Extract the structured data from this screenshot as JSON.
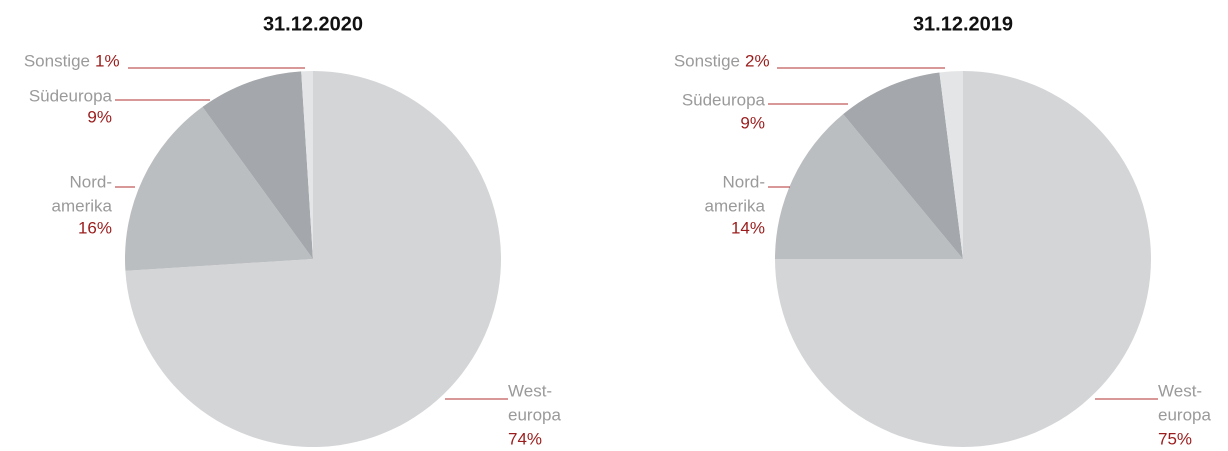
{
  "chart_data": [
    {
      "type": "pie",
      "title": "31.12.2020",
      "categories": [
        [
          "West-",
          "europa"
        ],
        [
          "Nord-",
          "amerika"
        ],
        [
          "Südeuropa"
        ],
        [
          "Sonstige"
        ]
      ],
      "values": [
        74,
        16,
        9,
        1
      ],
      "value_labels": [
        "74%",
        "16%",
        "9%",
        "1%"
      ],
      "colors": [
        "#d4d5d7",
        "#bbbec1",
        "#a4a7ab",
        "#e4e5e6"
      ]
    },
    {
      "type": "pie",
      "title": "31.12.2019",
      "categories": [
        [
          "West-",
          "europa"
        ],
        [
          "Nord-",
          "amerika"
        ],
        [
          "Südeuropa"
        ],
        [
          "Sonstige"
        ]
      ],
      "values": [
        75,
        14,
        9,
        2
      ],
      "value_labels": [
        "75%",
        "14%",
        "9%",
        "2%"
      ],
      "colors": [
        "#d4d5d7",
        "#bbbec1",
        "#a4a7ab",
        "#e4e5e6"
      ]
    }
  ]
}
